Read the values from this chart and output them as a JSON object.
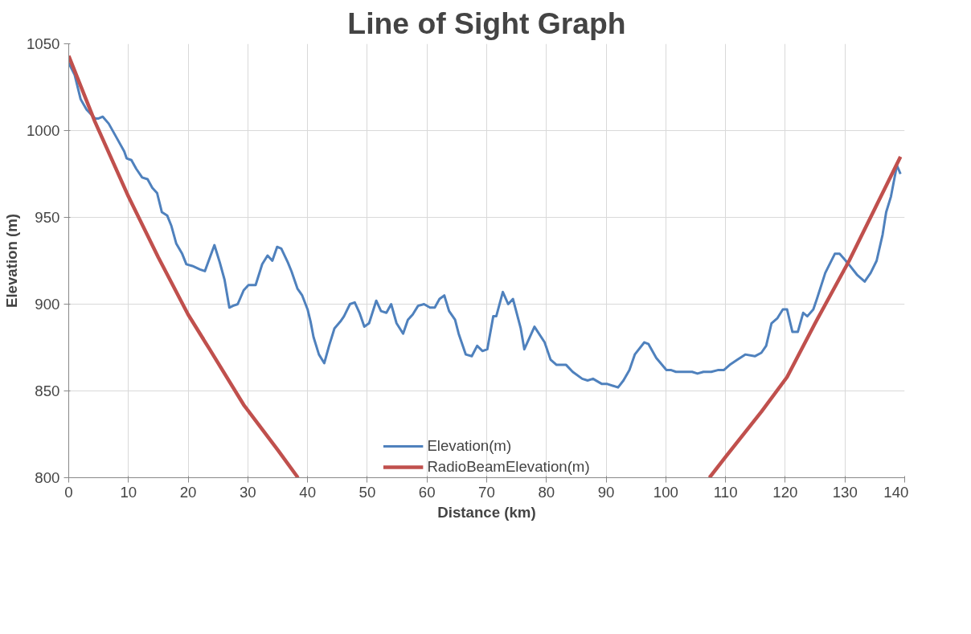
{
  "chart_data": {
    "type": "line",
    "title": "Line of Sight Graph",
    "xlabel": "Distance (km)",
    "ylabel": "Elevation (m)",
    "xlim": [
      0,
      140
    ],
    "xticks": [
      0,
      10,
      20,
      30,
      40,
      50,
      60,
      70,
      80,
      90,
      100,
      110,
      120,
      130,
      140
    ],
    "ylim": [
      800,
      1050
    ],
    "yticks": [
      800,
      850,
      900,
      950,
      1000,
      1050
    ],
    "grid": true,
    "legend": "bottom",
    "marker": "none",
    "line_style": "solid",
    "series": [
      {
        "name": "Elevation(m)",
        "color": "#4f81bd",
        "x": [
          0,
          1,
          2,
          3,
          4.4,
          5,
          5.7,
          6.7,
          8,
          9.3,
          9.7,
          10.5,
          11.3,
          12.3,
          13.2,
          14,
          14.8,
          15.6,
          16.5,
          17.2,
          18,
          19,
          19.7,
          20.7,
          22,
          22.8,
          24.4,
          25.3,
          26.1,
          26.9,
          27.5,
          28.3,
          29.3,
          30.1,
          31.3,
          32.4,
          33.3,
          34.1,
          34.9,
          35.6,
          36.7,
          37.3,
          38.3,
          39.1,
          40,
          40.5,
          41,
          41.9,
          42.8,
          43.6,
          44.5,
          45.5,
          46.1,
          47.1,
          47.9,
          48.7,
          49.5,
          50.3,
          51.5,
          52.3,
          53.2,
          54,
          54.9,
          56,
          56.8,
          57.6,
          58.5,
          59.5,
          60.5,
          61.3,
          62.1,
          62.9,
          63.7,
          64.7,
          65.3,
          66.5,
          67.5,
          68.4,
          69.3,
          70.1,
          71.1,
          71.6,
          72.7,
          73.6,
          74.4,
          75.7,
          76.3,
          78,
          79.7,
          80.7,
          81.7,
          83.3,
          84.4,
          86,
          86.9,
          87.8,
          89.3,
          90.2,
          92,
          92.9,
          93.9,
          94.8,
          96.4,
          97.1,
          98.4,
          100.1,
          100.9,
          101.7,
          103.1,
          104.4,
          105.3,
          106.3,
          107.6,
          108.7,
          109.7,
          110.7,
          112,
          113.3,
          114.9,
          116,
          116.8,
          117.7,
          118.7,
          119.6,
          120.3,
          121.2,
          122.1,
          123,
          123.7,
          124.7,
          125.3,
          126.7,
          128.3,
          129.1,
          130.4,
          132,
          133.3,
          134.3,
          135.3,
          136.3,
          136.9,
          137.7,
          138.7,
          139.3
        ],
        "values": [
          1039,
          1032,
          1018,
          1012,
          1007,
          1007,
          1008,
          1004,
          996,
          988,
          984,
          983,
          978,
          973,
          972,
          967,
          964,
          953,
          951,
          945,
          935,
          929,
          923,
          922,
          920,
          919,
          934,
          924,
          914,
          898,
          899,
          900,
          908,
          911,
          911,
          923,
          928,
          925,
          933,
          932,
          924,
          919,
          909,
          905,
          897,
          890,
          881,
          871,
          866,
          876,
          886,
          890,
          893,
          900,
          901,
          895,
          887,
          889,
          902,
          896,
          895,
          900,
          889,
          883,
          891,
          894,
          899,
          900,
          898,
          898,
          903,
          905,
          896,
          891,
          883,
          871,
          870,
          876,
          873,
          874,
          893,
          893,
          907,
          900,
          903,
          886,
          874,
          887,
          878,
          868,
          865,
          865,
          861,
          857,
          856,
          857,
          854,
          854,
          852,
          856,
          862,
          871,
          878,
          877,
          869,
          862,
          862,
          861,
          861,
          861,
          860,
          861,
          861,
          862,
          862,
          865,
          868,
          871,
          870,
          872,
          876,
          889,
          892,
          897,
          897,
          884,
          884,
          895,
          893,
          897,
          903,
          918,
          929,
          929,
          924,
          917,
          913,
          918,
          925,
          940,
          953,
          962,
          980,
          975
        ]
      },
      {
        "name": "RadioBeamElevation(m)",
        "color": "#c0504d",
        "x": [
          0,
          4.4,
          10,
          15,
          20,
          23.6,
          29.3,
          35,
          38.4,
          72,
          107.3,
          110,
          116,
          120.3,
          125,
          130.7,
          135,
          139.3
        ],
        "values": [
          1043,
          1005,
          962,
          927,
          894,
          874,
          842,
          816,
          800,
          null,
          800,
          812,
          838,
          858,
          889,
          925,
          955,
          985
        ]
      }
    ]
  }
}
